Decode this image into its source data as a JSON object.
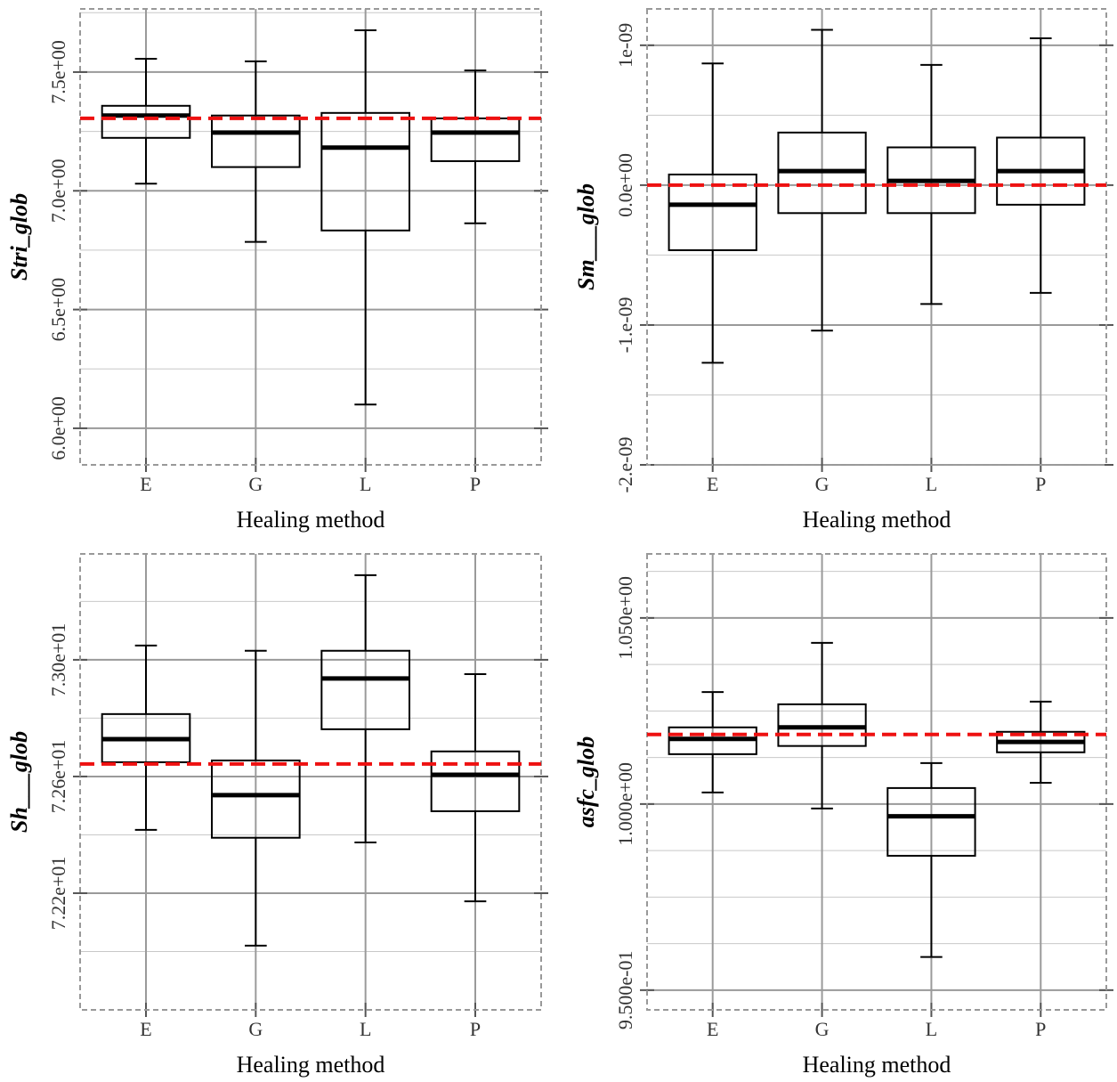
{
  "chart_data": [
    {
      "type": "box",
      "ylabel": "Stri_glob",
      "xlabel": "Healing method",
      "categories": [
        "E",
        "G",
        "L",
        "P"
      ],
      "boxes": [
        {
          "whisker_low": 7.03,
          "q1": 7.223,
          "median": 7.317,
          "q3": 7.358,
          "whisker_high": 7.556
        },
        {
          "whisker_low": 6.785,
          "q1": 7.1,
          "median": 7.245,
          "q3": 7.317,
          "whisker_high": 7.545
        },
        {
          "whisker_low": 6.1,
          "q1": 6.833,
          "median": 7.182,
          "q3": 7.328,
          "whisker_high": 7.676
        },
        {
          "whisker_low": 6.863,
          "q1": 7.125,
          "median": 7.245,
          "q3": 7.305,
          "whisker_high": 7.507
        }
      ],
      "reference_line": 7.305,
      "ylim": [
        5.846,
        7.766
      ],
      "yticks": [
        {
          "value": 6,
          "label": "6.0e+00"
        },
        {
          "value": 6.5,
          "label": "6.5e+00"
        },
        {
          "value": 7,
          "label": "7.0e+00"
        },
        {
          "value": 7.5,
          "label": "7.5e+00"
        }
      ],
      "yminor": [
        6.25,
        6.75,
        7.25,
        7.75
      ]
    },
    {
      "type": "box",
      "ylabel": "Sm___glob",
      "xlabel": "Healing method",
      "categories": [
        "E",
        "G",
        "L",
        "P"
      ],
      "boxes": [
        {
          "whisker_low": -1.27e-09,
          "q1": -4.65e-10,
          "median": -1.4e-10,
          "q3": 7.6e-11,
          "whisker_high": 8.7e-10
        },
        {
          "whisker_low": -1.04e-09,
          "q1": -2e-10,
          "median": 1e-10,
          "q3": 3.76e-10,
          "whisker_high": 1.11e-09
        },
        {
          "whisker_low": -8.5e-10,
          "q1": -2e-10,
          "median": 3e-11,
          "q3": 2.7e-10,
          "whisker_high": 8.6e-10
        },
        {
          "whisker_low": -7.7e-10,
          "q1": -1.4e-10,
          "median": 1e-10,
          "q3": 3.4e-10,
          "whisker_high": 1.05e-09
        }
      ],
      "reference_line": 0,
      "ylim": [
        -2e-09,
        1.26e-09
      ],
      "yticks": [
        {
          "value": -2e-09,
          "label": "-2.e-09"
        },
        {
          "value": -1e-09,
          "label": "-1.e-09"
        },
        {
          "value": 0,
          "label": "0.0e+00"
        },
        {
          "value": 1e-09,
          "label": "1e-09"
        }
      ],
      "yminor": [
        -1.5e-09,
        -5e-10,
        5e-10
      ]
    },
    {
      "type": "box",
      "ylabel": "Sh___glob",
      "xlabel": "Healing method",
      "categories": [
        "E",
        "G",
        "L",
        "P"
      ],
      "boxes": [
        {
          "whisker_low": 72.417,
          "q1": 72.649,
          "median": 72.728,
          "q3": 72.814,
          "whisker_high": 73.049
        },
        {
          "whisker_low": 72.02,
          "q1": 72.39,
          "median": 72.536,
          "q3": 72.655,
          "whisker_high": 73.031
        },
        {
          "whisker_low": 72.374,
          "q1": 72.762,
          "median": 72.936,
          "q3": 73.031,
          "whisker_high": 73.29
        },
        {
          "whisker_low": 72.172,
          "q1": 72.481,
          "median": 72.606,
          "q3": 72.686,
          "whisker_high": 72.951
        }
      ],
      "reference_line": 72.643,
      "ylim": [
        71.8,
        73.363
      ],
      "yticks": [
        {
          "value": 72.2,
          "label": "7.22e+01"
        },
        {
          "value": 72.6,
          "label": "7.26e+01"
        },
        {
          "value": 73,
          "label": "7.30e+01"
        }
      ],
      "yminor": [
        72.0,
        72.4,
        72.8,
        73.2
      ]
    },
    {
      "type": "box",
      "ylabel": "asfc_glob",
      "xlabel": "Healing method",
      "categories": [
        "E",
        "G",
        "L",
        "P"
      ],
      "boxes": [
        {
          "whisker_low": 1.0031,
          "q1": 1.0134,
          "median": 1.0175,
          "q3": 1.0206,
          "whisker_high": 1.0301
        },
        {
          "whisker_low": 0.9988,
          "q1": 1.0156,
          "median": 1.0206,
          "q3": 1.0268,
          "whisker_high": 1.0433
        },
        {
          "whisker_low": 0.9589,
          "q1": 0.9861,
          "median": 0.9967,
          "q3": 1.0043,
          "whisker_high": 1.011
        },
        {
          "whisker_low": 1.0057,
          "q1": 1.0139,
          "median": 1.0167,
          "q3": 1.0194,
          "whisker_high": 1.0275
        }
      ],
      "reference_line": 1.0187,
      "ylim": [
        0.9447,
        1.0672
      ],
      "yticks": [
        {
          "value": 0.95,
          "label": "9.500e-01"
        },
        {
          "value": 1,
          "label": "1.000e+00"
        },
        {
          "value": 1.05,
          "label": "1.050e+00"
        }
      ],
      "yminor": [
        0.9625,
        0.975,
        0.9875,
        1.0125,
        1.025,
        1.0375,
        1.0625
      ]
    }
  ]
}
